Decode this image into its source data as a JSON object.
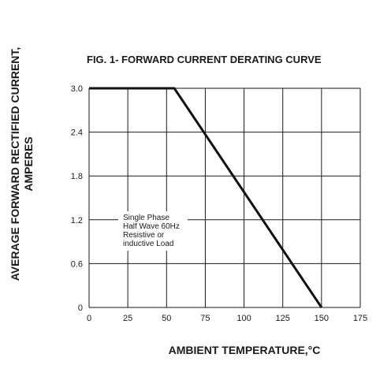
{
  "chart_data": {
    "type": "line",
    "title": "FIG. 1- FORWARD CURRENT DERATING CURVE",
    "xlabel": "AMBIENT TEMPERATURE,°C",
    "ylabel_lines": [
      "AVERAGE FORWARD RECTIFIED CURRENT,",
      "AMPERES"
    ],
    "x_ticks": [
      "0",
      "25",
      "50",
      "75",
      "100",
      "125",
      "150",
      "175"
    ],
    "y_ticks": [
      "0",
      "0.6",
      "1.2",
      "1.8",
      "2.4",
      "3.0"
    ],
    "xlim": [
      0,
      175
    ],
    "ylim": [
      0,
      3.0
    ],
    "grid": true,
    "series": [
      {
        "x": [
          0,
          55,
          150
        ],
        "y": [
          3.0,
          3.0,
          0
        ]
      }
    ],
    "annotation_lines": [
      "Single Phase",
      "Half Wave 60Hz",
      "Resistive or",
      "inductive Load"
    ]
  }
}
